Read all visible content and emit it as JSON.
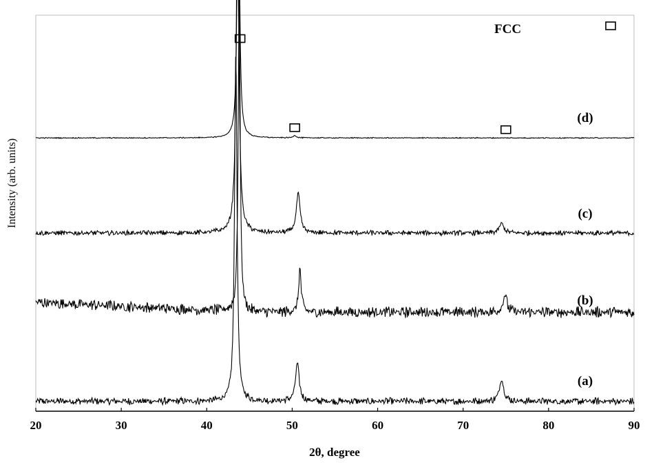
{
  "chart_data": {
    "type": "line",
    "xlabel": "2θ, degree",
    "ylabel": "Intensity (arb. units)",
    "xlim": [
      20,
      90
    ],
    "ylim": [
      0,
      100
    ],
    "xticks": [
      "20",
      "30",
      "40",
      "50",
      "60",
      "70",
      "80",
      "90"
    ],
    "grid": false,
    "legend": {
      "marker": "open-square",
      "label": "FCC",
      "position": "top-right"
    },
    "series": [
      {
        "name": "(a)",
        "baseline": 2.5,
        "noise": 0.7,
        "peaks": [
          {
            "x": 43.4,
            "height": 89,
            "width": 0.17
          },
          {
            "x": 50.6,
            "height": 9.5,
            "width": 0.26
          },
          {
            "x": 74.5,
            "height": 5.5,
            "width": 0.3
          }
        ]
      },
      {
        "name": "(b)",
        "baseline": 25,
        "slope_start": 2.5,
        "noise": 1.1,
        "peaks": [
          {
            "x": 43.8,
            "height": 80,
            "width": 0.14
          },
          {
            "x": 50.9,
            "height": 11,
            "width": 0.17
          },
          {
            "x": 74.9,
            "height": 4.5,
            "width": 0.26
          }
        ]
      },
      {
        "name": "(c)",
        "baseline": 45,
        "noise": 0.5,
        "peaks": [
          {
            "x": 43.6,
            "height": 79,
            "width": 0.2
          },
          {
            "x": 50.7,
            "height": 10,
            "width": 0.26
          },
          {
            "x": 74.5,
            "height": 2.5,
            "width": 0.3
          }
        ]
      },
      {
        "name": "(d)",
        "baseline": 69,
        "noise": 0.1,
        "peaks": [
          {
            "x": 43.7,
            "height": 82,
            "width": 0.15
          },
          {
            "x": 50.3,
            "height": 0.6,
            "width": 0.2
          }
        ]
      }
    ],
    "markers": [
      {
        "x": 43.9,
        "y": 94
      },
      {
        "x": 50.3,
        "y": 71.5
      },
      {
        "x": 75.0,
        "y": 71
      }
    ]
  }
}
